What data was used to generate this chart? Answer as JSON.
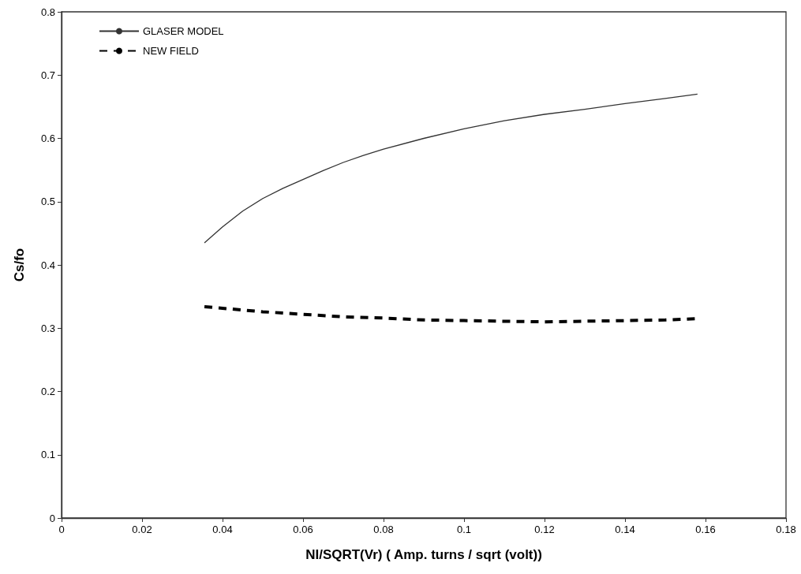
{
  "chart_data": {
    "type": "line",
    "xlabel": "NI/SQRT(Vr) ( Amp. turns / sqrt (volt))",
    "ylabel": "Cs/fo",
    "xlim": [
      0,
      0.18
    ],
    "xticks": [
      0,
      0.02,
      0.04,
      0.06,
      0.08,
      0.1,
      0.12,
      0.14,
      0.16,
      0.18
    ],
    "ylim": [
      0,
      0.8
    ],
    "yticks": [
      0,
      0.1,
      0.2,
      0.3,
      0.4,
      0.5,
      0.6,
      0.7,
      0.8
    ],
    "grid": false,
    "legend": "top left",
    "marker": "none",
    "series": [
      {
        "name": "GLASER MODEL",
        "color": "#333333",
        "line_style": "solid",
        "x": [
          0.0355,
          0.04,
          0.045,
          0.05,
          0.055,
          0.06,
          0.065,
          0.07,
          0.075,
          0.08,
          0.09,
          0.1,
          0.11,
          0.12,
          0.13,
          0.14,
          0.15,
          0.158
        ],
        "values": [
          0.435,
          0.46,
          0.485,
          0.505,
          0.521,
          0.535,
          0.549,
          0.562,
          0.573,
          0.583,
          0.6,
          0.615,
          0.628,
          0.638,
          0.646,
          0.655,
          0.663,
          0.67
        ]
      },
      {
        "name": "NEW FIELD",
        "color": "#000000",
        "line_style": "dashed",
        "x": [
          0.0355,
          0.05,
          0.06,
          0.07,
          0.08,
          0.09,
          0.1,
          0.11,
          0.12,
          0.13,
          0.14,
          0.15,
          0.158
        ],
        "values": [
          0.334,
          0.326,
          0.322,
          0.318,
          0.316,
          0.313,
          0.312,
          0.311,
          0.31,
          0.311,
          0.312,
          0.313,
          0.315
        ]
      }
    ]
  }
}
